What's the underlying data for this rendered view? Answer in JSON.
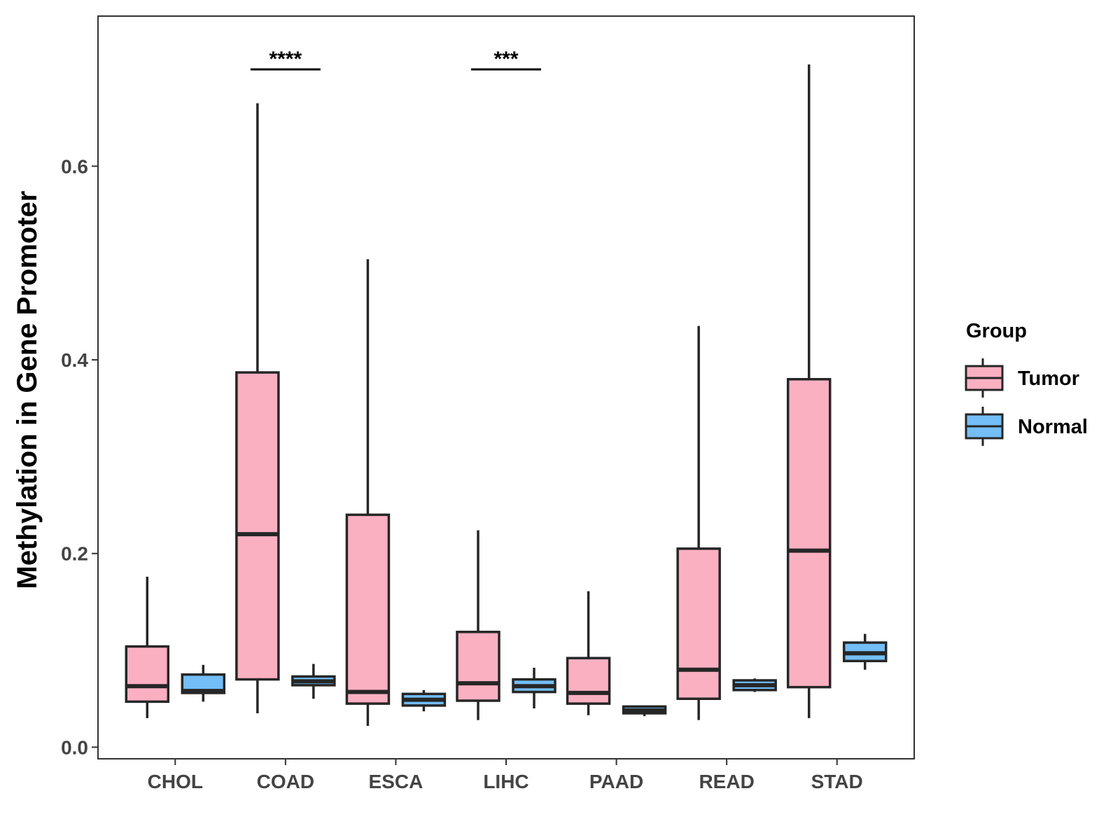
{
  "chart_data": {
    "type": "boxplot",
    "title": "",
    "xlabel": "",
    "ylabel": "Methylation in Gene Promoter",
    "ylim": [
      -0.012,
      0.755
    ],
    "yticks": [
      {
        "value": 0.0,
        "label": "0.0"
      },
      {
        "value": 0.2,
        "label": "0.2"
      },
      {
        "value": 0.4,
        "label": "0.4"
      },
      {
        "value": 0.6,
        "label": "0.6"
      }
    ],
    "categories": [
      "CHOL",
      "COAD",
      "ESCA",
      "LIHC",
      "PAAD",
      "READ",
      "STAD"
    ],
    "legend": {
      "title": "Group",
      "position": "right",
      "entries": [
        {
          "name": "Tumor",
          "color": "#FBB0C2"
        },
        {
          "name": "Normal",
          "color": "#74BEF8"
        }
      ]
    },
    "series": [
      {
        "name": "Tumor",
        "color": "#FBB0C2",
        "boxes": [
          {
            "min": 0.03,
            "q1": 0.047,
            "median": 0.063,
            "q3": 0.104,
            "max": 0.176
          },
          {
            "min": 0.035,
            "q1": 0.07,
            "median": 0.22,
            "q3": 0.387,
            "max": 0.665
          },
          {
            "min": 0.022,
            "q1": 0.045,
            "median": 0.057,
            "q3": 0.24,
            "max": 0.504
          },
          {
            "min": 0.028,
            "q1": 0.048,
            "median": 0.066,
            "q3": 0.119,
            "max": 0.224
          },
          {
            "min": 0.033,
            "q1": 0.045,
            "median": 0.056,
            "q3": 0.092,
            "max": 0.161
          },
          {
            "min": 0.028,
            "q1": 0.05,
            "median": 0.08,
            "q3": 0.205,
            "max": 0.435
          },
          {
            "min": 0.03,
            "q1": 0.062,
            "median": 0.203,
            "q3": 0.38,
            "max": 0.705
          }
        ]
      },
      {
        "name": "Normal",
        "color": "#74BEF8",
        "boxes": [
          {
            "min": 0.047,
            "q1": 0.056,
            "median": 0.058,
            "q3": 0.075,
            "max": 0.085
          },
          {
            "min": 0.05,
            "q1": 0.064,
            "median": 0.068,
            "q3": 0.073,
            "max": 0.086
          },
          {
            "min": 0.037,
            "q1": 0.043,
            "median": 0.049,
            "q3": 0.055,
            "max": 0.059
          },
          {
            "min": 0.04,
            "q1": 0.057,
            "median": 0.063,
            "q3": 0.07,
            "max": 0.082
          },
          {
            "min": 0.032,
            "q1": 0.035,
            "median": 0.038,
            "q3": 0.042,
            "max": 0.043
          },
          {
            "min": 0.057,
            "q1": 0.059,
            "median": 0.064,
            "q3": 0.069,
            "max": 0.071
          },
          {
            "min": 0.08,
            "q1": 0.089,
            "median": 0.097,
            "q3": 0.108,
            "max": 0.117
          }
        ]
      }
    ],
    "annotations": [
      {
        "category": "COAD",
        "text": "****",
        "y": 0.7
      },
      {
        "category": "LIHC",
        "text": "***",
        "y": 0.7
      }
    ]
  }
}
